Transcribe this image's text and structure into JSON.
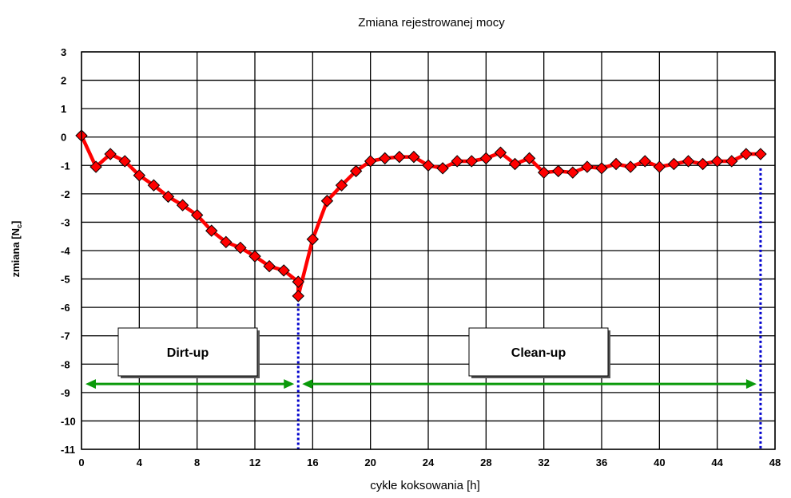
{
  "chart_data": {
    "type": "line",
    "title": "Zmiana rejestrowanej mocy",
    "xlabel": "cykle koksowania [h]",
    "ylabel_main": "zmiana [N",
    "ylabel_sub": "c",
    "ylabel_end": "]",
    "xlim": [
      0,
      48
    ],
    "ylim": [
      -11,
      3
    ],
    "x_ticks": [
      "0",
      "4",
      "8",
      "12",
      "16",
      "20",
      "24",
      "28",
      "32",
      "36",
      "40",
      "44",
      "48"
    ],
    "y_ticks": [
      "3",
      "2",
      "1",
      "0",
      "-1",
      "-2",
      "-3",
      "-4",
      "-5",
      "-6",
      "-7",
      "-8",
      "-9",
      "-10",
      "-11"
    ],
    "grid": true,
    "series": [
      {
        "color": "#ff0000",
        "marker": "diamond",
        "marker_color": "#ff0000",
        "x": [
          0,
          1,
          2,
          3,
          4,
          5,
          6,
          7,
          8,
          9,
          10,
          11,
          12,
          13,
          14,
          15,
          15,
          16,
          17,
          18,
          19,
          20,
          21,
          22,
          23,
          24,
          25,
          26,
          27,
          28,
          29,
          30,
          31,
          32,
          33,
          34,
          35,
          36,
          37,
          38,
          39,
          40,
          41,
          42,
          43,
          44,
          45,
          46,
          47
        ],
        "y": [
          0.05,
          -1.05,
          -0.6,
          -0.85,
          -1.35,
          -1.7,
          -2.1,
          -2.4,
          -2.75,
          -3.3,
          -3.7,
          -3.9,
          -4.2,
          -4.55,
          -4.7,
          -5.1,
          -5.6,
          -3.6,
          -2.25,
          -1.7,
          -1.2,
          -0.85,
          -0.75,
          -0.7,
          -0.7,
          -1.0,
          -1.1,
          -0.85,
          -0.85,
          -0.75,
          -0.55,
          -0.95,
          -0.75,
          -1.25,
          -1.2,
          -1.25,
          -1.05,
          -1.1,
          -0.95,
          -1.05,
          -0.85,
          -1.05,
          -0.95,
          -0.85,
          -0.95,
          -0.85,
          -0.85,
          -0.6,
          -0.6
        ]
      }
    ],
    "annotations": [
      {
        "text": "Dirt-up",
        "from": 0,
        "to": 15
      },
      {
        "text": "Clean-up",
        "from": 15,
        "to": 47
      }
    ],
    "vlines": [
      15,
      47
    ],
    "arrow_y": -8.7,
    "arrow_color": "#0a9a0a",
    "vline_color": "#0000cc"
  }
}
